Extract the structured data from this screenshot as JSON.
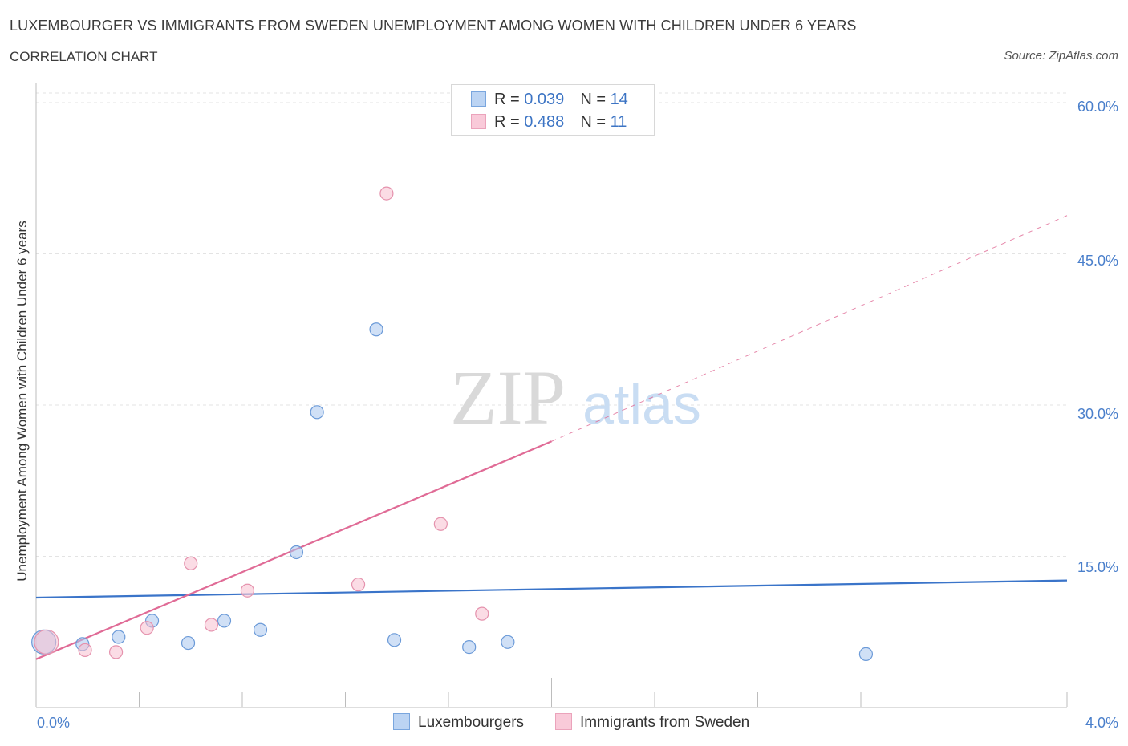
{
  "chart_data": {
    "type": "scatter",
    "title": "LUXEMBOURGER VS IMMIGRANTS FROM SWEDEN UNEMPLOYMENT AMONG WOMEN WITH CHILDREN UNDER 6 YEARS",
    "subtitle": "CORRELATION CHART",
    "source": "Source: ZipAtlas.com",
    "ylabel": "Unemployment Among Women with Children Under 6 years",
    "xlim": [
      0,
      4.0
    ],
    "ylim": [
      0,
      60
    ],
    "x_tick_labels": [
      "0.0%",
      "4.0%"
    ],
    "y_ticks": [
      15,
      30,
      45,
      60
    ],
    "y_tick_labels": [
      "15.0%",
      "30.0%",
      "45.0%",
      "60.0%"
    ],
    "grid": true,
    "watermark": {
      "part1": "ZIP",
      "part2": "atlas"
    },
    "legend": [
      {
        "r_label": "R = ",
        "r_value": "0.039",
        "n_label": "N = ",
        "n_value": "14"
      },
      {
        "r_label": "R = ",
        "r_value": "0.488",
        "n_label": "N = ",
        "n_value": "11"
      }
    ],
    "series": [
      {
        "name": "Luxembourgers",
        "color": "#a9c6ee",
        "stroke": "#6b9ad8",
        "line_color": "#3a74c9",
        "trend": {
          "x": [
            0.0,
            4.0
          ],
          "y": [
            10.9,
            12.6
          ]
        },
        "points": [
          {
            "x": 0.03,
            "y": 6.5,
            "big": true
          },
          {
            "x": 0.18,
            "y": 6.3
          },
          {
            "x": 0.32,
            "y": 7.0
          },
          {
            "x": 0.45,
            "y": 8.6
          },
          {
            "x": 0.59,
            "y": 6.4
          },
          {
            "x": 0.73,
            "y": 8.6
          },
          {
            "x": 0.87,
            "y": 7.7
          },
          {
            "x": 1.01,
            "y": 15.4
          },
          {
            "x": 1.09,
            "y": 29.3
          },
          {
            "x": 1.32,
            "y": 37.5
          },
          {
            "x": 1.39,
            "y": 6.7
          },
          {
            "x": 1.68,
            "y": 6.0
          },
          {
            "x": 1.83,
            "y": 6.5
          },
          {
            "x": 3.22,
            "y": 5.3
          }
        ]
      },
      {
        "name": "Immigrants from Sweden",
        "color": "#f7bfd0",
        "stroke": "#e592ad",
        "line_color": "#e06b96",
        "trend": {
          "x": [
            0.0,
            2.0
          ],
          "y": [
            4.8,
            26.4
          ]
        },
        "trend_dashed": {
          "x": [
            2.0,
            4.0
          ],
          "y": [
            26.4,
            48.8
          ]
        },
        "points": [
          {
            "x": 0.04,
            "y": 6.5,
            "big": true
          },
          {
            "x": 0.19,
            "y": 5.7
          },
          {
            "x": 0.31,
            "y": 5.5
          },
          {
            "x": 0.43,
            "y": 7.9
          },
          {
            "x": 0.6,
            "y": 14.3
          },
          {
            "x": 0.68,
            "y": 8.2
          },
          {
            "x": 0.82,
            "y": 11.6
          },
          {
            "x": 1.25,
            "y": 12.2
          },
          {
            "x": 1.36,
            "y": 51.0
          },
          {
            "x": 1.57,
            "y": 18.2
          },
          {
            "x": 1.73,
            "y": 9.3
          }
        ]
      }
    ]
  }
}
